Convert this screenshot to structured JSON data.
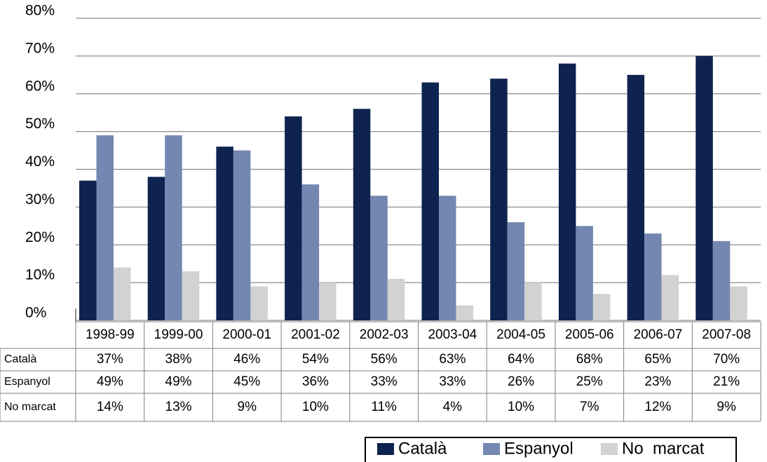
{
  "chart_data": {
    "type": "bar",
    "categories": [
      "1998-99",
      "1999-00",
      "2000-01",
      "2001-02",
      "2002-03",
      "2003-04",
      "2004-05",
      "2005-06",
      "2006-07",
      "2007-08"
    ],
    "series": [
      {
        "name": "Català",
        "color": "#0f2350",
        "values": [
          37,
          38,
          46,
          54,
          56,
          63,
          64,
          68,
          65,
          70
        ],
        "value_labels": [
          "37%",
          "38%",
          "46%",
          "54%",
          "56%",
          "63%",
          "64%",
          "68%",
          "65%",
          "70%"
        ]
      },
      {
        "name": "Espanyol",
        "color": "#7387b1",
        "values": [
          49,
          49,
          45,
          36,
          33,
          33,
          26,
          25,
          23,
          21
        ],
        "value_labels": [
          "49%",
          "49%",
          "45%",
          "36%",
          "33%",
          "33%",
          "26%",
          "25%",
          "23%",
          "21%"
        ]
      },
      {
        "name": "No  marcat",
        "color": "#d2d2d2",
        "values": [
          14,
          13,
          9,
          10,
          11,
          4,
          10,
          7,
          12,
          9
        ],
        "value_labels": [
          "14%",
          "13%",
          "9%",
          "10%",
          "11%",
          "4%",
          "10%",
          "7%",
          "12%",
          "9%"
        ]
      }
    ],
    "ylim": [
      0,
      80
    ],
    "yticks": [
      {
        "value": 0,
        "label": "0%"
      },
      {
        "value": 10,
        "label": "10%"
      },
      {
        "value": 20,
        "label": "20%"
      },
      {
        "value": 30,
        "label": "30%"
      },
      {
        "value": 40,
        "label": "40%"
      },
      {
        "value": 50,
        "label": "50%"
      },
      {
        "value": 60,
        "label": "60%"
      },
      {
        "value": 70,
        "label": "70%"
      },
      {
        "value": 80,
        "label": "80%"
      }
    ],
    "grid": true,
    "legend": "bottom-right",
    "data_table": true
  }
}
